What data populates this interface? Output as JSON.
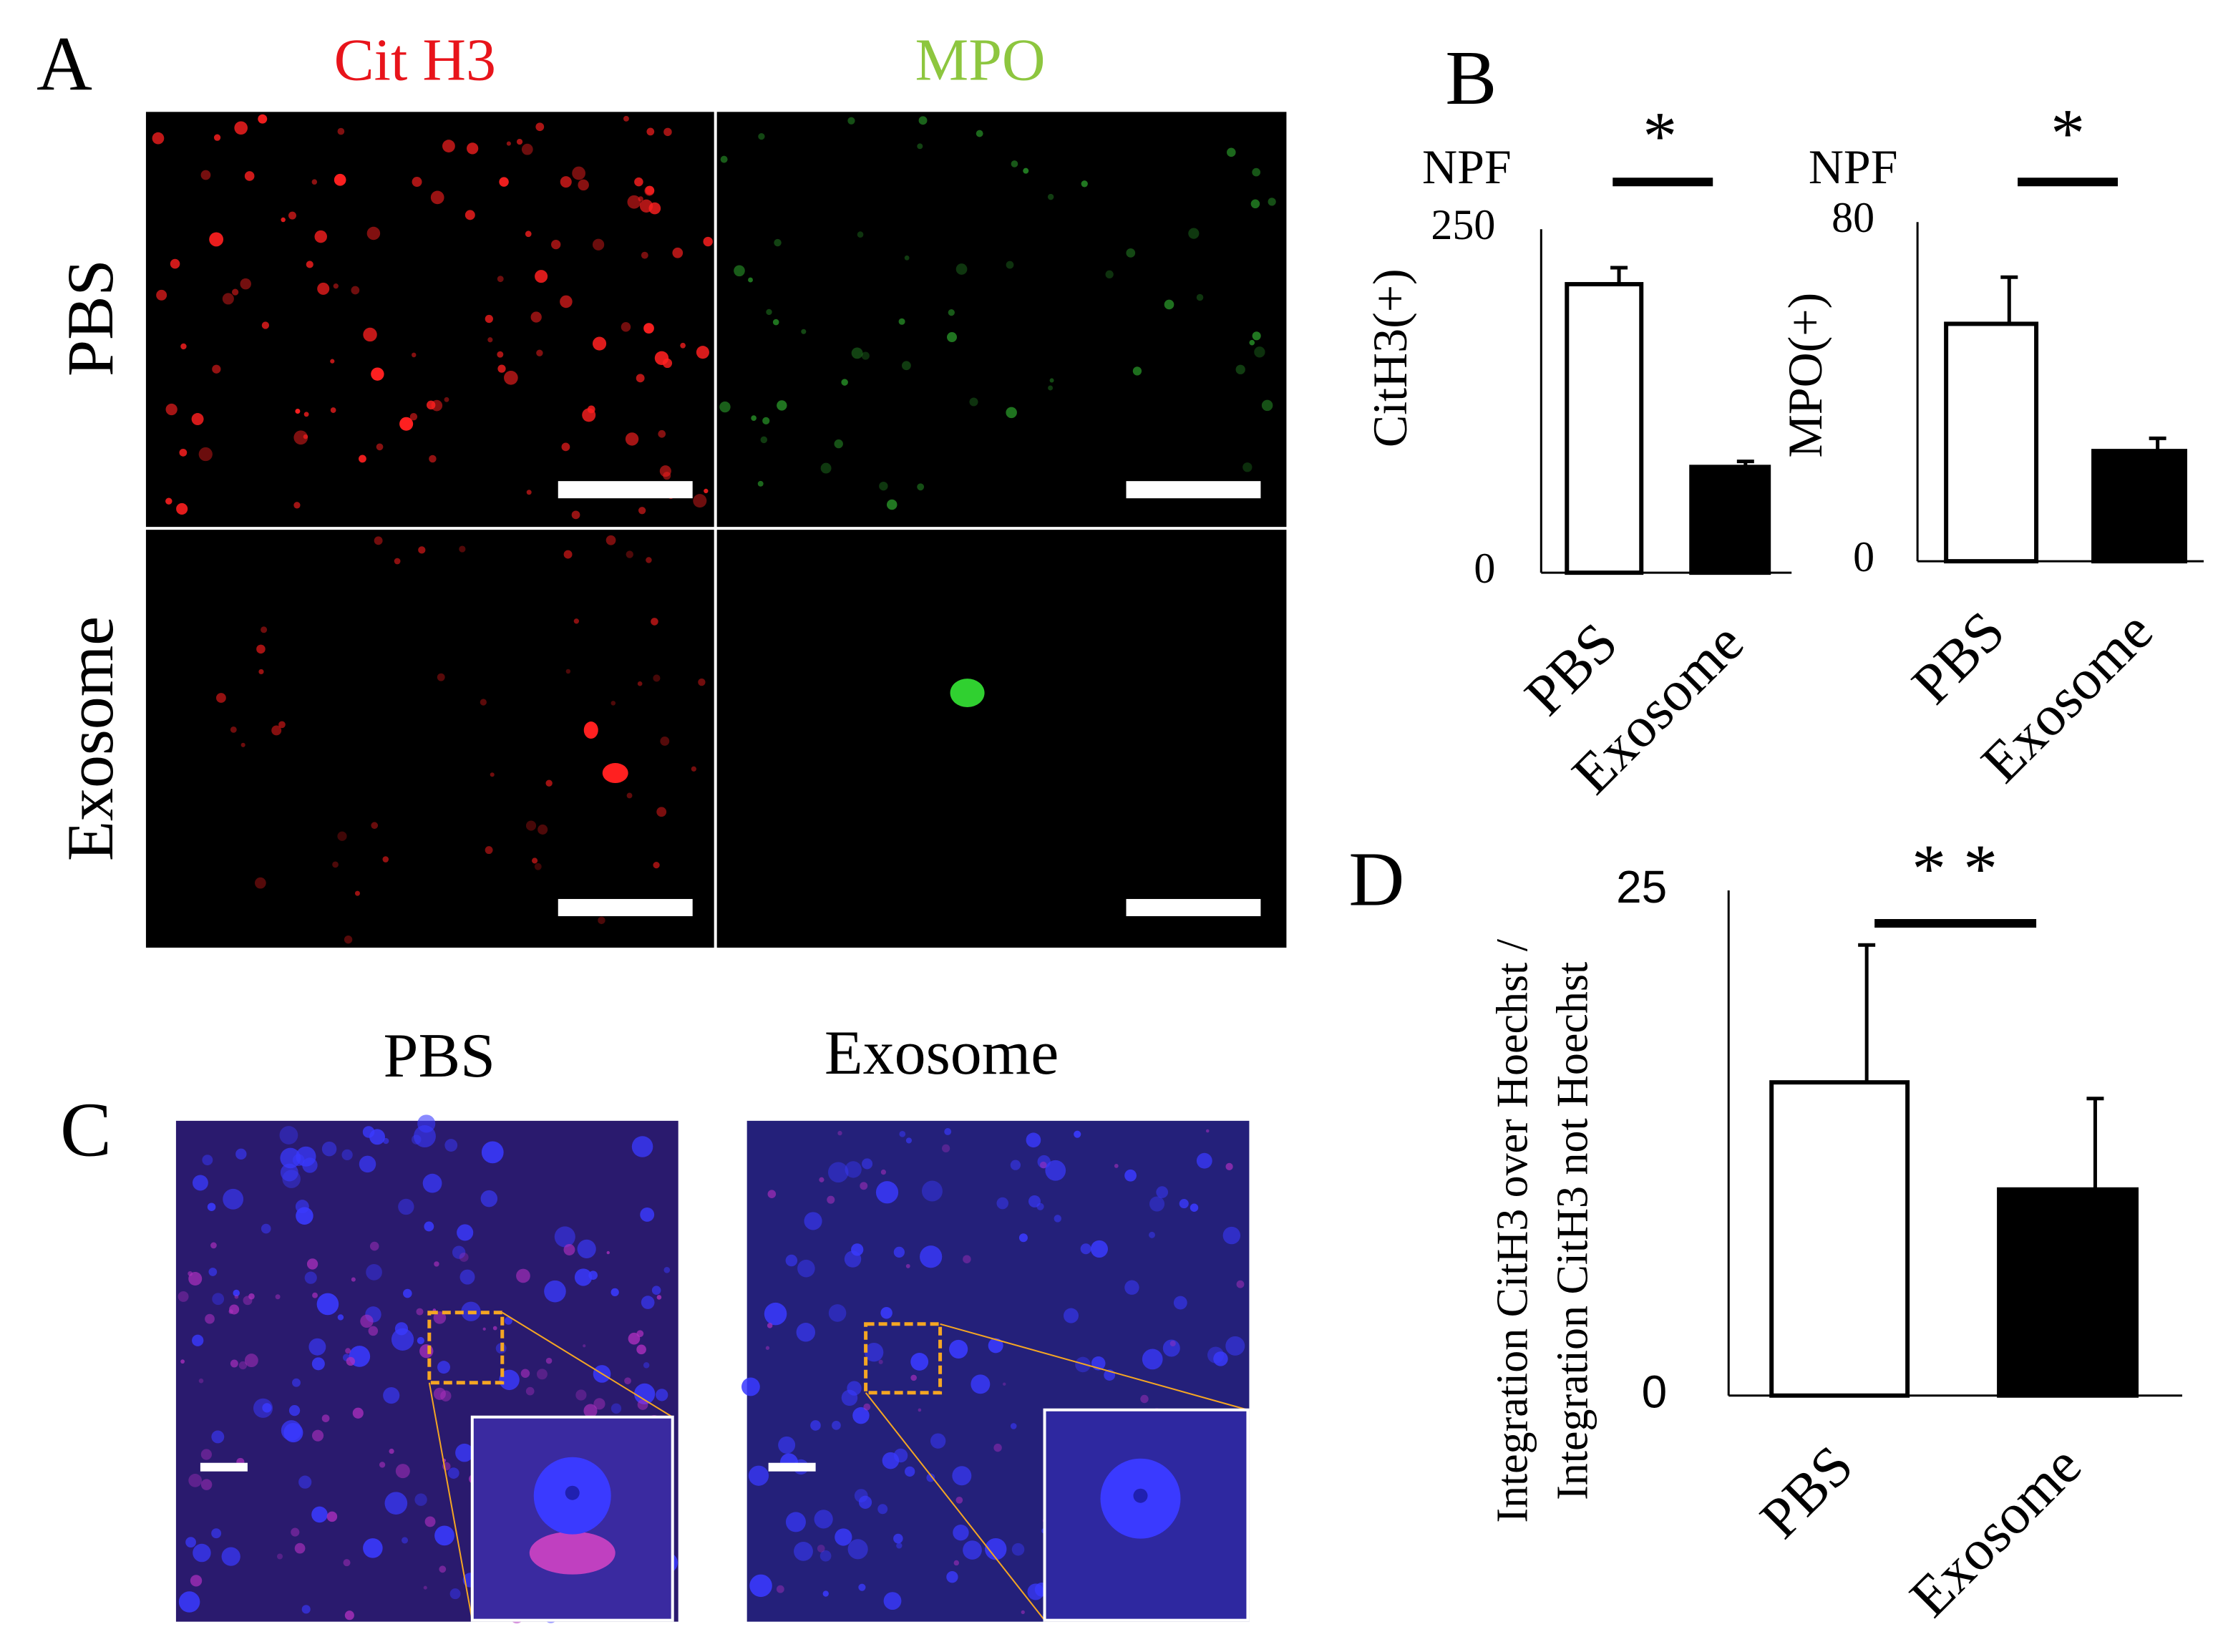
{
  "panels": {
    "A": {
      "label": "A",
      "columns": [
        "Cit H3",
        "MPO"
      ],
      "rows": [
        "PBS",
        "Exosome"
      ]
    },
    "C": {
      "label": "C",
      "columns": [
        "PBS",
        "Exosome"
      ]
    }
  },
  "chart_data": [
    {
      "type": "bar",
      "panel_label": "B",
      "unit_label": "NPF",
      "ylabel": "CitH3(+)",
      "categories": [
        "PBS",
        "Exosome"
      ],
      "values": [
        210,
        77
      ],
      "errors": [
        12,
        4
      ],
      "colors": [
        "#ffffff",
        "#000000"
      ],
      "ylim": [
        0,
        250
      ],
      "yticks": [
        0,
        250
      ],
      "annotation": "*"
    },
    {
      "type": "bar",
      "unit_label": "NPF",
      "ylabel": "MPO(+)",
      "categories": [
        "PBS",
        "Exosome"
      ],
      "values": [
        56,
        26
      ],
      "errors": [
        11,
        3
      ],
      "colors": [
        "#ffffff",
        "#000000"
      ],
      "ylim": [
        0,
        80
      ],
      "yticks": [
        0,
        80
      ],
      "annotation": "*"
    },
    {
      "type": "bar",
      "panel_label": "D",
      "ylabel_lines": [
        "Integration CitH3 over Hoechst /",
        "Integration CitH3 not Hoechst"
      ],
      "categories": [
        "PBS",
        "Exosome"
      ],
      "values": [
        15.5,
        10.2
      ],
      "errors": [
        6.8,
        4.5
      ],
      "colors": [
        "#ffffff",
        "#000000"
      ],
      "ylim": [
        0,
        25
      ],
      "yticks": [
        0,
        25
      ],
      "annotation": "* *"
    }
  ]
}
